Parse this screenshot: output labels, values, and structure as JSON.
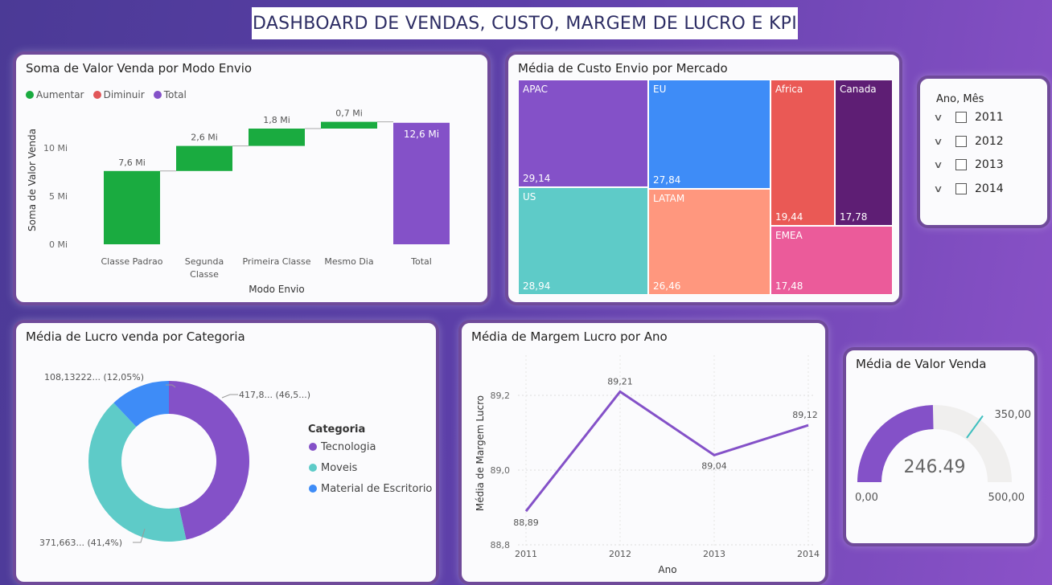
{
  "dashboard_title": "DASHBOARD DE VENDAS, CUSTO, MARGEM DE LUCRO E KPI",
  "waterfall": {
    "title": "Soma de Valor Venda por Modo Envio",
    "legend": [
      {
        "label": "Aumentar",
        "color": "#1aab40"
      },
      {
        "label": "Diminuir",
        "color": "#e15759"
      },
      {
        "label": "Total",
        "color": "#8451c8"
      }
    ],
    "ylabel": "Soma de Valor Venda",
    "xlabel": "Modo Envio",
    "y_ticks": [
      "0 Mi",
      "5 Mi",
      "10 Mi"
    ]
  },
  "treemap": {
    "title": "Média de Custo Envio por Mercado"
  },
  "slicer": {
    "title": "Ano, Mês",
    "items": [
      "2011",
      "2012",
      "2013",
      "2014"
    ]
  },
  "donut": {
    "title": "Média de Lucro venda por Categoria",
    "legend_title": "Categoria",
    "labels": {
      "tecnologia": "417,8... (46,5...)",
      "moveis": "371,663... (41,4%)",
      "material": "108,13222... (12,05%)"
    }
  },
  "line": {
    "title": "Média de Margem Lucro por Ano",
    "ylabel": "Média de Margem Lucro",
    "xlabel": "Ano",
    "y_ticks": [
      "88,8",
      "89,0",
      "89,2"
    ],
    "point_labels": [
      "88,89",
      "89,21",
      "89,04",
      "89,12"
    ]
  },
  "gauge": {
    "title": "Média de Valor Venda",
    "value_label": "246.49",
    "min_label": "0,00",
    "max_label": "500,00",
    "target_label": "350,00",
    "value": 246.49,
    "min": 0,
    "max": 500,
    "target": 350
  },
  "chart_data": [
    {
      "type": "bar",
      "subtype": "waterfall",
      "title": "Soma de Valor Venda por Modo Envio",
      "xlabel": "Modo Envio",
      "ylabel": "Soma de Valor Venda",
      "categories": [
        "Classe Padrao",
        "Segunda Classe",
        "Primeira Classe",
        "Mesmo Dia",
        "Total"
      ],
      "values": [
        7.6,
        2.6,
        1.8,
        0.7,
        12.6
      ],
      "labels": [
        "7,6 Mi",
        "2,6 Mi",
        "1,8 Mi",
        "0,7 Mi",
        "12,6 Mi"
      ],
      "colors": [
        "#1aab40",
        "#1aab40",
        "#1aab40",
        "#1aab40",
        "#8451c8"
      ],
      "ylim": [
        0,
        13
      ]
    },
    {
      "type": "treemap",
      "title": "Média de Custo Envio por Mercado",
      "items": [
        {
          "label": "APAC",
          "value": "29,14",
          "color": "#8451c8"
        },
        {
          "label": "US",
          "value": "28,94",
          "color": "#5ecbc8"
        },
        {
          "label": "EU",
          "value": "27,84",
          "color": "#3e8cf7"
        },
        {
          "label": "LATAM",
          "value": "26,46",
          "color": "#ff977e"
        },
        {
          "label": "Africa",
          "value": "19,44",
          "color": "#ea5955"
        },
        {
          "label": "Canada",
          "value": "17,78",
          "color": "#5e1e74"
        },
        {
          "label": "EMEA",
          "value": "17,48",
          "color": "#eb5b9a"
        }
      ]
    },
    {
      "type": "pie",
      "subtype": "donut",
      "title": "Média de Lucro venda por Categoria",
      "categories": [
        "Tecnologia",
        "Moveis",
        "Material de Escritorio"
      ],
      "values": [
        46.55,
        41.4,
        12.05
      ],
      "colors": [
        "#8451c8",
        "#5ecbc8",
        "#3e8cf7"
      ]
    },
    {
      "type": "line",
      "title": "Média de Margem Lucro por Ano",
      "xlabel": "Ano",
      "ylabel": "Média de Margem Lucro",
      "x": [
        "2011",
        "2012",
        "2013",
        "2014"
      ],
      "y": [
        88.89,
        89.21,
        89.04,
        89.12
      ],
      "ylim": [
        88.8,
        89.3
      ],
      "color": "#8451c8"
    }
  ]
}
